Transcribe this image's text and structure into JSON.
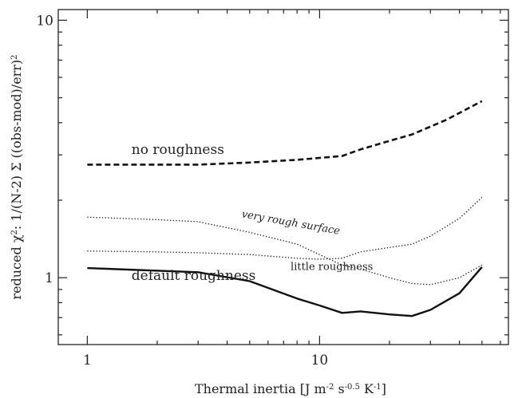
{
  "chart_data": {
    "type": "line",
    "x_scale": "log",
    "y_scale": "log",
    "xlim": [
      0.75,
      65
    ],
    "ylim": [
      0.55,
      11
    ],
    "x_ticks": [
      {
        "value": 1,
        "label": "1"
      },
      {
        "value": 10,
        "label": "10"
      }
    ],
    "y_ticks": [
      {
        "value": 1,
        "label": "1"
      },
      {
        "value": 10,
        "label": "10"
      }
    ],
    "xlabel_parts": {
      "main": "Thermal inertia [J m",
      "exp1": "-2",
      "mid1": " s",
      "exp2": "-0.5",
      "mid2": " K",
      "exp3": "-1",
      "end": "]"
    },
    "ylabel_parts": {
      "pre": "reduced χ",
      "sup1": "2",
      "mid": ": 1/(N-2) Σ ((obs-mod)/err)",
      "sup2": "2"
    },
    "grid": false,
    "series": [
      {
        "name": "no roughness",
        "style": "dashed",
        "x": [
          1,
          2,
          3,
          5,
          8,
          12.5,
          15,
          20,
          25,
          35,
          50
        ],
        "y": [
          2.75,
          2.75,
          2.75,
          2.8,
          2.87,
          2.97,
          3.15,
          3.4,
          3.6,
          4.1,
          4.85
        ]
      },
      {
        "name": "very rough surface",
        "style": "dotted",
        "x": [
          1,
          2,
          3,
          5,
          8,
          12.5,
          15,
          20,
          25,
          30,
          40,
          50
        ],
        "y": [
          1.72,
          1.68,
          1.65,
          1.5,
          1.35,
          1.12,
          1.08,
          1.0,
          0.95,
          0.94,
          1.0,
          1.12
        ]
      },
      {
        "name": "little roughness",
        "style": "dotted",
        "x": [
          1,
          2,
          3,
          5,
          8,
          10,
          12.5,
          15,
          20,
          25,
          30,
          40,
          50
        ],
        "y": [
          1.27,
          1.26,
          1.25,
          1.23,
          1.19,
          1.18,
          1.19,
          1.26,
          1.31,
          1.35,
          1.45,
          1.7,
          2.05
        ]
      },
      {
        "name": "default roughness",
        "style": "solid",
        "x": [
          1,
          3,
          5,
          8,
          10,
          12.5,
          15,
          20,
          25,
          30,
          40,
          50
        ],
        "y": [
          1.09,
          1.05,
          0.97,
          0.83,
          0.78,
          0.73,
          0.74,
          0.72,
          0.71,
          0.75,
          0.87,
          1.1
        ]
      }
    ],
    "annotations": [
      {
        "text": "no roughness",
        "x": 1.55,
        "y": 3.02
      },
      {
        "text": "very rough surface",
        "x": 4.6,
        "y": 1.72
      },
      {
        "text": "little roughness",
        "x": 7.5,
        "y": 1.07
      },
      {
        "text": "default roughness",
        "x": 1.55,
        "y": 0.98
      }
    ]
  }
}
